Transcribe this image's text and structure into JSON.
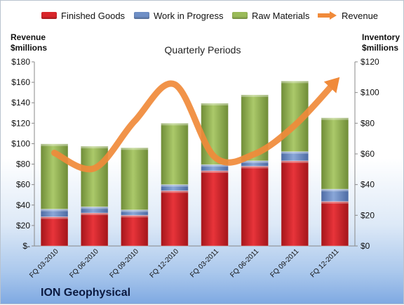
{
  "chart_data": {
    "type": "bar",
    "title": "Quarterly Periods",
    "company": "ION Geophysical",
    "left_axis_title": "Revenue\n$millions",
    "right_axis_title": "Inventory\n$millions",
    "categories": [
      "FQ 03-2010",
      "FQ 06-2010",
      "FQ 09-2010",
      "FQ 12-2010",
      "FQ 03-2011",
      "FQ 06-2011",
      "FQ 09-2011",
      "FQ 12-2011"
    ],
    "series": [
      {
        "name": "Finished Goods",
        "type": "stacked-bar",
        "axis": "right",
        "color": "#d9262b",
        "values": [
          19,
          21.5,
          20,
          36,
          49,
          52,
          55.5,
          29
        ]
      },
      {
        "name": "Work in Progress",
        "type": "stacked-bar",
        "axis": "right",
        "color": "#6f8fc6",
        "values": [
          5,
          4,
          3.5,
          4,
          4,
          3.5,
          6,
          8
        ]
      },
      {
        "name": "Raw Materials",
        "type": "stacked-bar",
        "axis": "right",
        "color": "#9abb59",
        "values": [
          42.5,
          39.5,
          40.5,
          40,
          40,
          43,
          46,
          46.5
        ]
      },
      {
        "name": "Revenue",
        "type": "line",
        "axis": "left",
        "color": "#f08a3a",
        "values": [
          91,
          76,
          122,
          158,
          87,
          90,
          118,
          160
        ]
      }
    ],
    "left_axis": {
      "min": 0,
      "max": 180,
      "ticks": [
        "$-",
        "$20",
        "$40",
        "$60",
        "$80",
        "$100",
        "$120",
        "$140",
        "$160",
        "$180"
      ]
    },
    "right_axis": {
      "min": 0,
      "max": 120,
      "ticks": [
        "$0",
        "$20",
        "$40",
        "$60",
        "$80",
        "$100",
        "$120"
      ]
    },
    "legend_position": "top"
  }
}
